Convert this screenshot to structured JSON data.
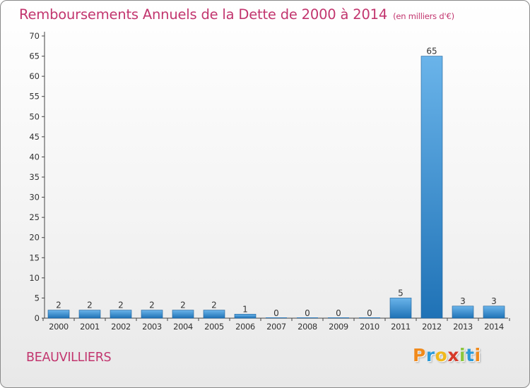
{
  "title": "Remboursements Annuels de la Dette de 2000 à 2014",
  "unit_note": "(en milliers d'€)",
  "commune": "BEAUVILLIERS",
  "logo": {
    "letters": [
      "P",
      "r",
      "o",
      "x",
      "i",
      "t",
      "i"
    ],
    "colors": [
      "#f08a1c",
      "#2c9ad8",
      "#f0b81c",
      "#d63a2a",
      "#8cc63e",
      "#2c9ad8",
      "#f08a1c"
    ]
  },
  "colors": {
    "bar_light": "#6ab4ea",
    "bar_dark": "#1f72b6",
    "title": "#c2356e",
    "text": "#333333"
  },
  "chart_data": {
    "type": "bar",
    "title": "Remboursements Annuels de la Dette de 2000 à 2014",
    "categories": [
      "2000",
      "2001",
      "2002",
      "2003",
      "2004",
      "2005",
      "2006",
      "2007",
      "2008",
      "2009",
      "2010",
      "2011",
      "2012",
      "2013",
      "2014"
    ],
    "values": [
      2,
      2,
      2,
      2,
      2,
      2,
      1,
      0,
      0,
      0,
      0,
      5,
      65,
      3,
      3
    ],
    "ylim": [
      0,
      70
    ],
    "yticks": [
      0,
      5,
      10,
      15,
      20,
      25,
      30,
      35,
      40,
      45,
      50,
      55,
      60,
      65,
      70
    ],
    "xlabel": "",
    "ylabel": "",
    "grid": false,
    "legend": "none"
  }
}
